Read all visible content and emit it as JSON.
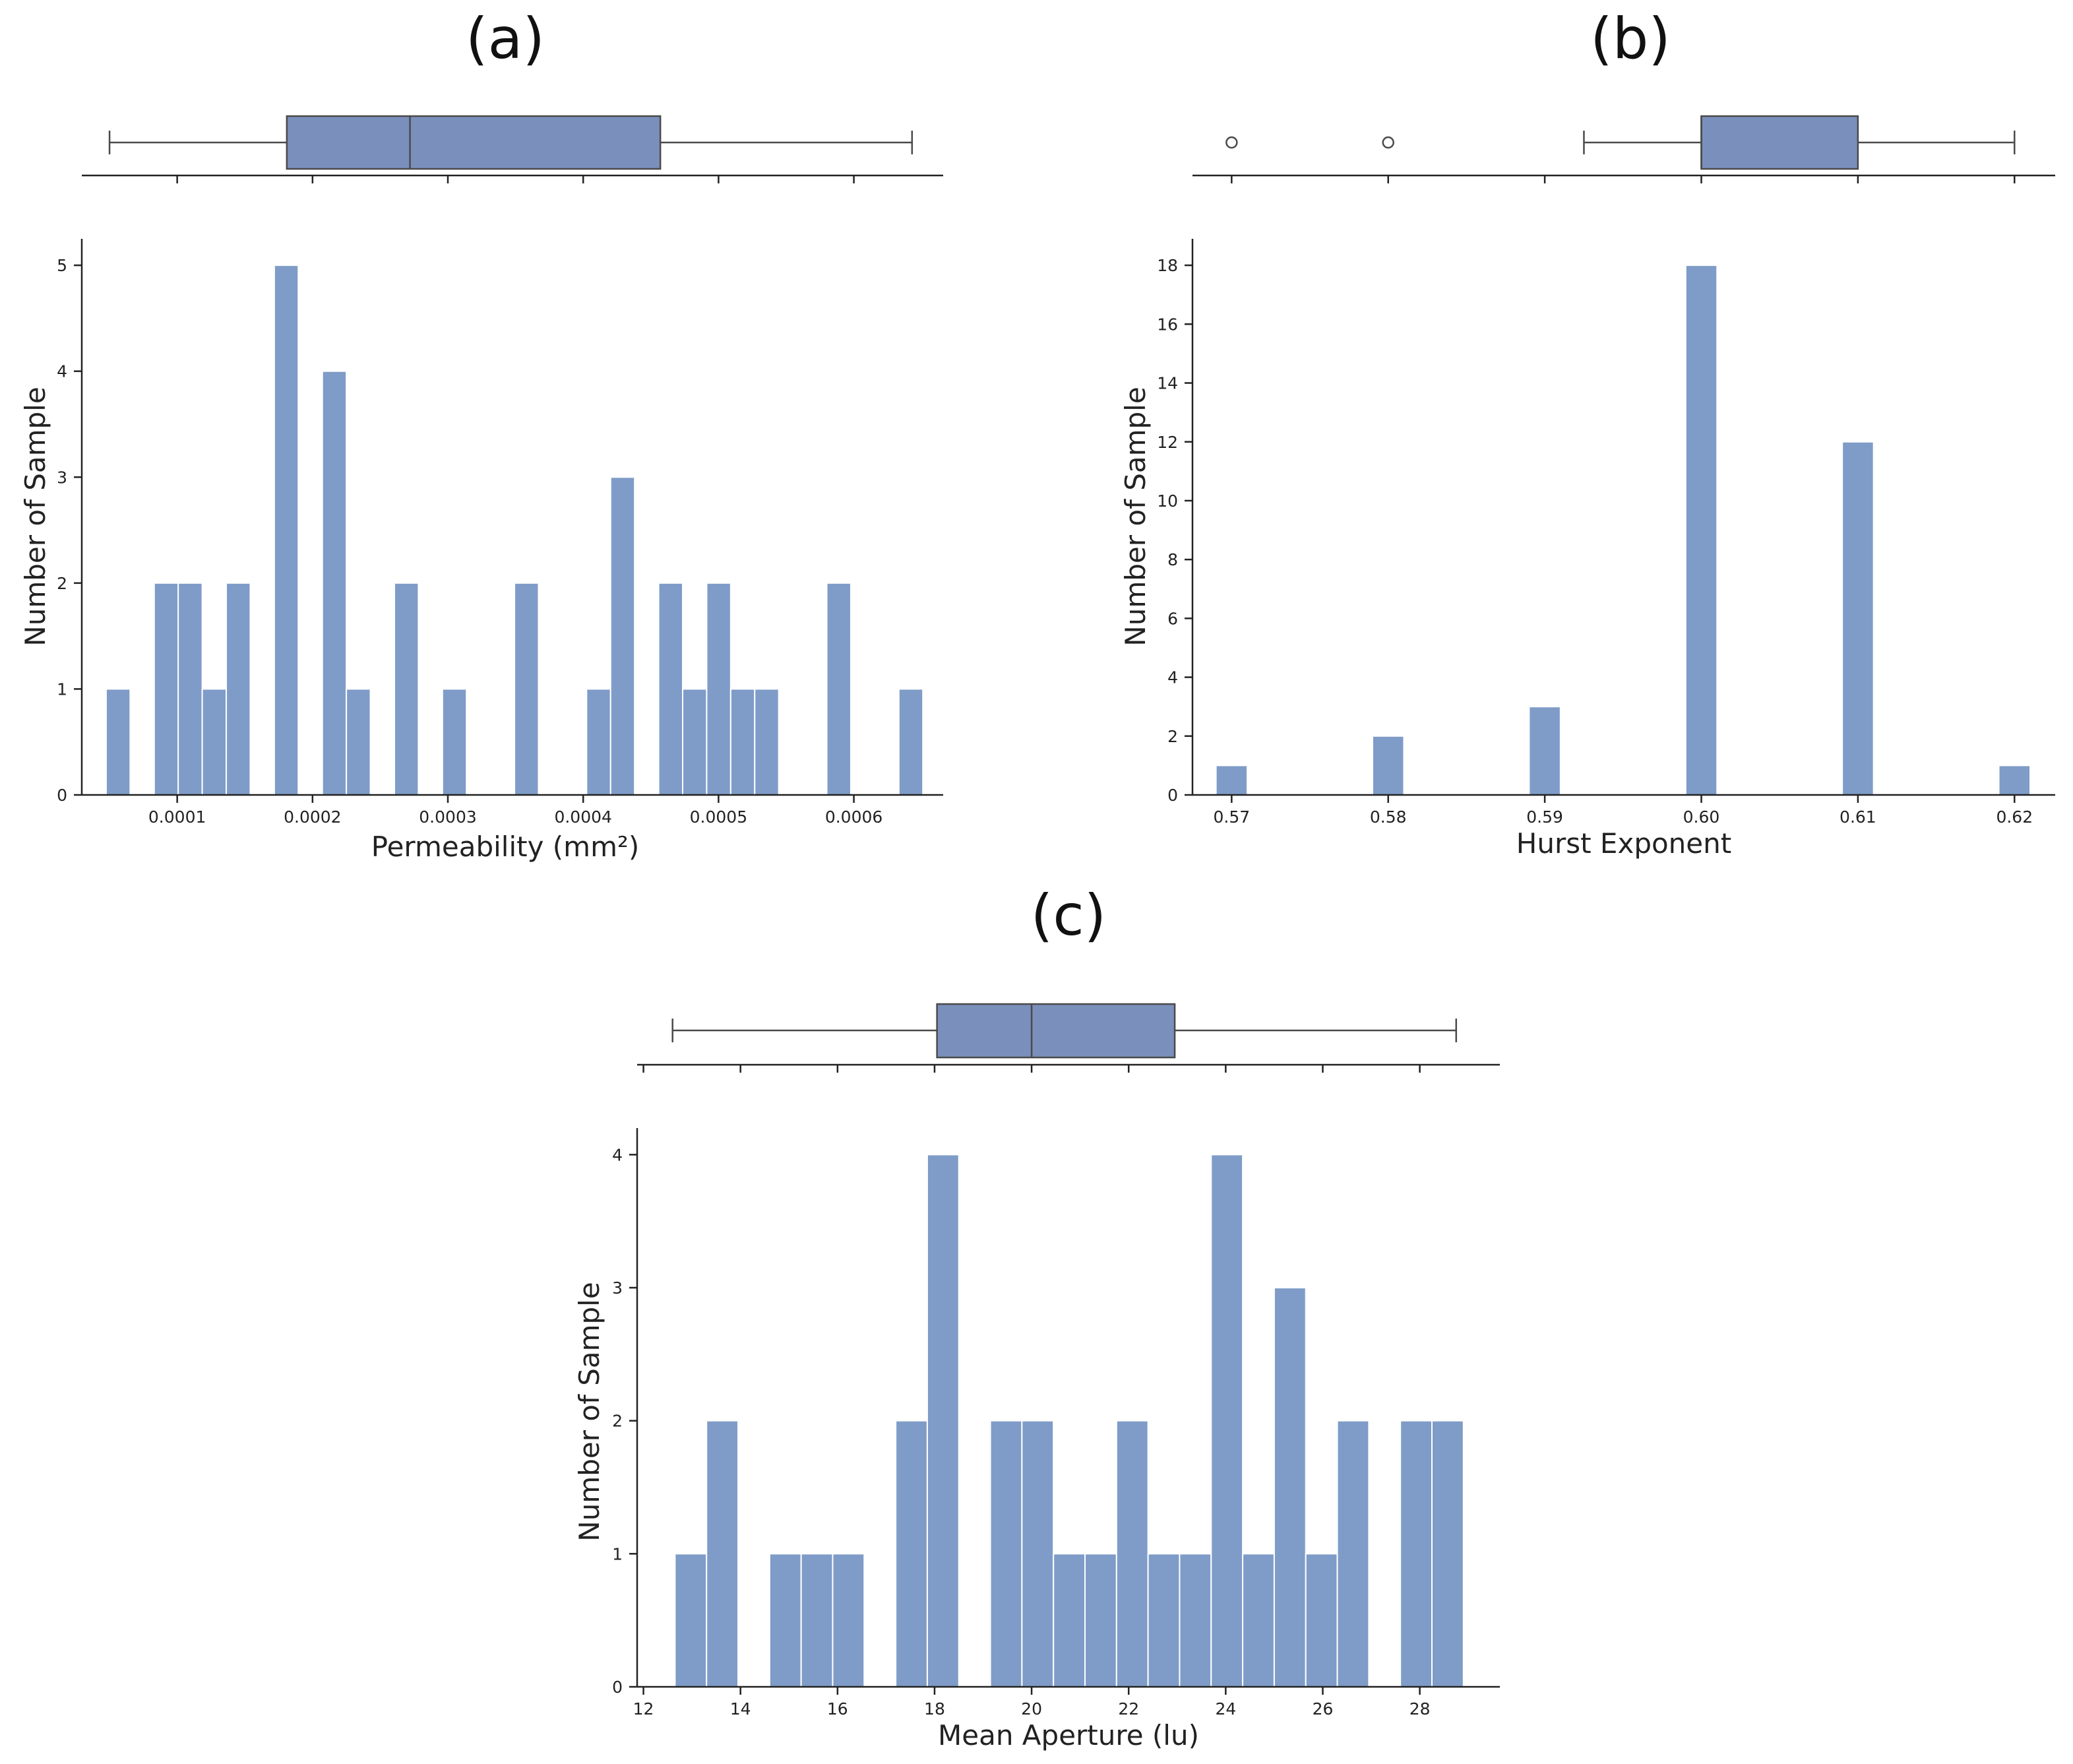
{
  "chart_data": [
    {
      "id": "a",
      "type": "bar",
      "title": "(a)",
      "xlabel": "Permeability (mm²)",
      "ylabel": "Number of Sample",
      "xlim": [
        2.95e-05,
        0.000666
      ],
      "ylim": [
        0,
        5.25
      ],
      "xticks": [
        0.0001,
        0.0002,
        0.0003,
        0.0004,
        0.0005,
        0.0006
      ],
      "xtick_labels": [
        "0.0001",
        "0.0002",
        "0.0003",
        "0.0004",
        "0.0005",
        "0.0006"
      ],
      "yticks": [
        0,
        1,
        2,
        3,
        4,
        5
      ],
      "ytick_labels": [
        "0",
        "1",
        "2",
        "3",
        "4",
        "5"
      ],
      "bin_start": 4.75e-05,
      "bin_width": 1.775e-05,
      "counts": [
        1,
        0,
        2,
        2,
        1,
        2,
        0,
        5,
        0,
        4,
        1,
        0,
        2,
        0,
        1,
        0,
        0,
        2,
        0,
        0,
        1,
        3,
        0,
        2,
        1,
        2,
        1,
        1,
        0,
        0,
        2,
        0,
        0,
        1
      ],
      "box": {
        "whisker_low": 5e-05,
        "q1": 0.000181,
        "median": 0.000272,
        "q3": 0.000457,
        "whisker_high": 0.000643,
        "fliers": []
      }
    },
    {
      "id": "b",
      "type": "bar",
      "title": "(b)",
      "xlabel": "Hurst Exponent",
      "ylabel": "Number of Sample",
      "xlim": [
        0.5675,
        0.6226
      ],
      "ylim": [
        0,
        18.9
      ],
      "xticks": [
        0.57,
        0.58,
        0.59,
        0.6,
        0.61,
        0.62
      ],
      "xtick_labels": [
        "0.57",
        "0.58",
        "0.59",
        "0.60",
        "0.61",
        "0.62"
      ],
      "yticks": [
        0,
        2,
        4,
        6,
        8,
        10,
        12,
        14,
        16,
        18
      ],
      "ytick_labels": [
        "0",
        "2",
        "4",
        "6",
        "8",
        "10",
        "12",
        "14",
        "16",
        "18"
      ],
      "bins": [
        {
          "center": 0.57,
          "count": 1
        },
        {
          "center": 0.58,
          "count": 2
        },
        {
          "center": 0.59,
          "count": 3
        },
        {
          "center": 0.6,
          "count": 18
        },
        {
          "center": 0.61,
          "count": 12
        },
        {
          "center": 0.62,
          "count": 1
        }
      ],
      "bar_width": 0.002,
      "box": {
        "whisker_low": 0.5925,
        "q1": 0.6,
        "median": 0.6,
        "q3": 0.61,
        "whisker_high": 0.62,
        "fliers": [
          0.57,
          0.58
        ]
      }
    },
    {
      "id": "c",
      "type": "bar",
      "title": "(c)",
      "xlabel": "Mean Aperture (lu)",
      "ylabel": "Number of Sample",
      "xlim": [
        11.87,
        29.65
      ],
      "ylim": [
        0,
        4.2
      ],
      "xticks": [
        12,
        14,
        16,
        18,
        20,
        22,
        24,
        26,
        28
      ],
      "xtick_labels": [
        "12",
        "14",
        "16",
        "18",
        "20",
        "22",
        "24",
        "26",
        "28"
      ],
      "yticks": [
        0,
        1,
        2,
        3,
        4
      ],
      "ytick_labels": [
        "0",
        "1",
        "2",
        "3",
        "4"
      ],
      "bin_start": 12.65,
      "bin_width": 0.65,
      "counts": [
        1,
        2,
        0,
        1,
        1,
        1,
        0,
        2,
        4,
        0,
        2,
        2,
        1,
        1,
        2,
        1,
        1,
        4,
        1,
        3,
        1,
        2,
        0,
        2,
        2
      ],
      "box": {
        "whisker_low": 12.6,
        "q1": 18.05,
        "median": 20.0,
        "q3": 22.95,
        "whisker_high": 28.75,
        "fliers": []
      }
    }
  ]
}
